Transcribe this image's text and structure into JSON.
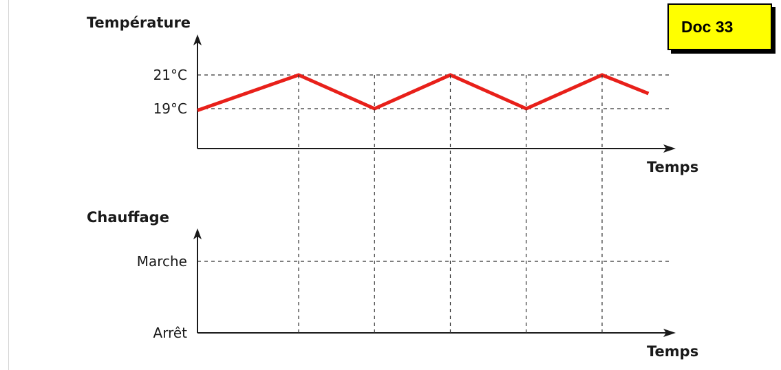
{
  "badge": {
    "label": "Doc 33"
  },
  "chart_data": [
    {
      "type": "line",
      "ylabel": "Température",
      "xlabel": "Temps",
      "y_ticks": [
        {
          "label": "21°C",
          "value": 21
        },
        {
          "label": "19°C",
          "value": 19
        }
      ],
      "ylim": [
        17.8,
        22
      ],
      "xlim": [
        0,
        10
      ],
      "grid": "dashed",
      "series": [
        {
          "color": "#e8201a",
          "x": [
            0,
            2.4,
            4.2,
            6.0,
            7.8,
            9.6,
            10.7
          ],
          "y": [
            18.9,
            21,
            19,
            21,
            19,
            21,
            19.9
          ]
        }
      ],
      "drop_lines_x": [
        2.4,
        4.2,
        6.0,
        7.8,
        9.6
      ]
    },
    {
      "type": "line",
      "ylabel": "Chauffage",
      "xlabel": "Temps",
      "y_ticks": [
        {
          "label": "Marche",
          "value": 1
        },
        {
          "label": "Arrêt",
          "value": 0
        }
      ],
      "ylim": [
        0,
        1.4
      ],
      "grid": "dashed",
      "series": []
    }
  ]
}
